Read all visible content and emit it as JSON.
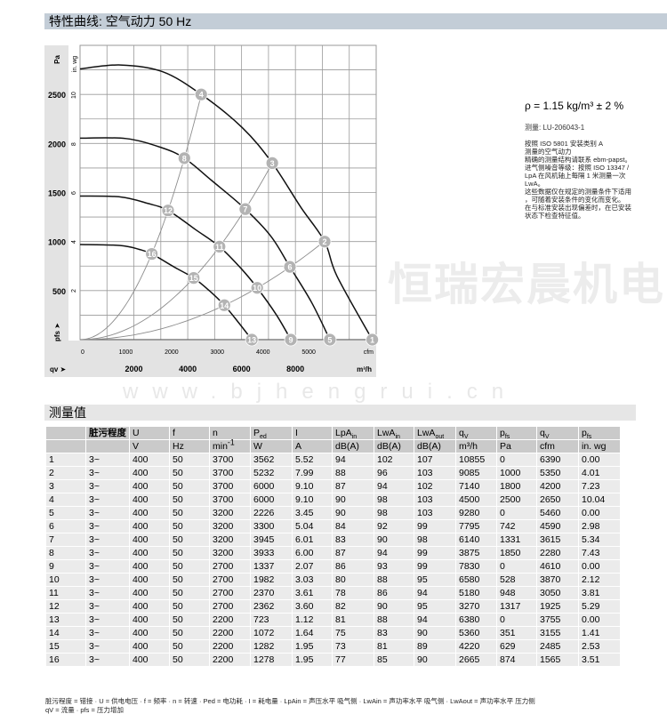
{
  "header": {
    "title": "特性曲线: 空气动力 50 Hz"
  },
  "watermark": {
    "brand": "恒瑞宏晨机电",
    "url": "www.bjhengrui.cn"
  },
  "info": {
    "density": "ρ = 1.15 kg/m³ ± 2 %",
    "measurement_id": "测量: LU-206043-1",
    "note": "按照 ISO 5801 安装类别 A\n测量的空气动力\n精确的测量结构请联系 ebm-papst。\n进气侧噪音等级：按照 ISO 13347 /\nLpA 在风机轴上每隔 1 米测量一次\nLwA。\n这些数据仅在规定的测量条件下适用\n，可随着安装条件的变化而变化。\n在与标准安装出现偏差时，在已安装\n状态下检查特征值。"
  },
  "chart_data": {
    "type": "line",
    "xlabel": "qv ➤",
    "xunit": "m³/h",
    "ylabel": "pfs ➤",
    "yunit": "Pa",
    "y2unit": "in. wg",
    "x2unit": "cfm",
    "xlim": [
      0,
      11000
    ],
    "ylim": [
      0,
      3000
    ],
    "grid": true,
    "x_ticks": [
      2000,
      4000,
      6000,
      8000
    ],
    "y_ticks": [
      500,
      1000,
      1500,
      2000,
      2500
    ],
    "y2_ticks": [
      2,
      4,
      6,
      8,
      10
    ],
    "x2_ticks": [
      0,
      1000,
      2000,
      3000,
      4000,
      5000
    ],
    "fan_curves": [
      [
        [
          0,
          2760
        ],
        [
          1500,
          2800
        ],
        [
          3060,
          2732
        ],
        [
          4500,
          2500
        ],
        [
          6030,
          2160
        ],
        [
          7140,
          1800
        ],
        [
          8200,
          1350
        ],
        [
          9085,
          1000
        ],
        [
          9540,
          650
        ],
        [
          10855,
          0
        ]
      ],
      [
        [
          0,
          2054
        ],
        [
          1700,
          2050
        ],
        [
          3000,
          1960
        ],
        [
          3875,
          1850
        ],
        [
          4900,
          1620
        ],
        [
          6140,
          1331
        ],
        [
          7100,
          1050
        ],
        [
          7795,
          742
        ],
        [
          8600,
          380
        ],
        [
          9280,
          0
        ]
      ],
      [
        [
          0,
          1464
        ],
        [
          1500,
          1455
        ],
        [
          2500,
          1390
        ],
        [
          3270,
          1317
        ],
        [
          4300,
          1120
        ],
        [
          5180,
          948
        ],
        [
          6000,
          720
        ],
        [
          6580,
          528
        ],
        [
          7300,
          250
        ],
        [
          7830,
          0
        ]
      ],
      [
        [
          0,
          970
        ],
        [
          1500,
          960
        ],
        [
          2200,
          920
        ],
        [
          2665,
          874
        ],
        [
          3500,
          740
        ],
        [
          4220,
          629
        ],
        [
          4800,
          500
        ],
        [
          5360,
          351
        ],
        [
          5900,
          170
        ],
        [
          6380,
          0
        ]
      ]
    ],
    "system_curves": [
      [
        16,
        12,
        8,
        4
      ],
      [
        15,
        11,
        7,
        3
      ],
      [
        14,
        10,
        6,
        2
      ]
    ],
    "points": [
      {
        "id": "1",
        "qv": 10855,
        "pfs": 0
      },
      {
        "id": "2",
        "qv": 9085,
        "pfs": 1000
      },
      {
        "id": "3",
        "qv": 7140,
        "pfs": 1800
      },
      {
        "id": "4",
        "qv": 4500,
        "pfs": 2500
      },
      {
        "id": "5",
        "qv": 9280,
        "pfs": 0
      },
      {
        "id": "6",
        "qv": 7795,
        "pfs": 742
      },
      {
        "id": "7",
        "qv": 6140,
        "pfs": 1331
      },
      {
        "id": "8",
        "qv": 3875,
        "pfs": 1850
      },
      {
        "id": "9",
        "qv": 7830,
        "pfs": 0
      },
      {
        "id": "10",
        "qv": 6580,
        "pfs": 528
      },
      {
        "id": "11",
        "qv": 5180,
        "pfs": 948
      },
      {
        "id": "12",
        "qv": 3270,
        "pfs": 1317
      },
      {
        "id": "13",
        "qv": 6380,
        "pfs": 0
      },
      {
        "id": "14",
        "qv": 5360,
        "pfs": 351
      },
      {
        "id": "15",
        "qv": 4220,
        "pfs": 629
      },
      {
        "id": "16",
        "qv": 2665,
        "pfs": 874
      }
    ],
    "colors": {
      "fan_curve": "#111111",
      "system_curve": "#8c8c8c",
      "marker": "#b3b3b3",
      "grid": "#9a9a9a",
      "band": "#e3e3e3"
    }
  },
  "table": {
    "section_title": "测量值",
    "header1": [
      "",
      "脏污程度",
      "U",
      "f",
      "n",
      "P",
      "I",
      "LpA",
      "LwA",
      "LwA",
      "q",
      "p",
      "q",
      "p"
    ],
    "header1_sub": [
      "",
      "",
      "",
      "",
      "",
      "ed",
      "",
      "in",
      "in",
      "out",
      "V",
      "fs",
      "V",
      "fs"
    ],
    "header2": [
      "",
      "",
      "V",
      "Hz",
      "min",
      "W",
      "A",
      "dB(A)",
      "dB(A)",
      "dB(A)",
      "m³/h",
      "Pa",
      "cfm",
      "in. wg"
    ],
    "header2_sup": [
      "",
      "",
      "",
      "",
      "-1",
      "",
      "",
      "",
      "",
      "",
      "",
      "",
      "",
      ""
    ],
    "rows": [
      [
        "1",
        "3~",
        "400",
        "50",
        "3700",
        "3562",
        "5.52",
        "94",
        "102",
        "107",
        "10855",
        "0",
        "6390",
        "0.00"
      ],
      [
        "2",
        "3~",
        "400",
        "50",
        "3700",
        "5232",
        "7.99",
        "88",
        "96",
        "103",
        "9085",
        "1000",
        "5350",
        "4.01"
      ],
      [
        "3",
        "3~",
        "400",
        "50",
        "3700",
        "6000",
        "9.10",
        "87",
        "94",
        "102",
        "7140",
        "1800",
        "4200",
        "7.23"
      ],
      [
        "4",
        "3~",
        "400",
        "50",
        "3700",
        "6000",
        "9.10",
        "90",
        "98",
        "103",
        "4500",
        "2500",
        "2650",
        "10.04"
      ],
      [
        "5",
        "3~",
        "400",
        "50",
        "3200",
        "2226",
        "3.45",
        "90",
        "98",
        "103",
        "9280",
        "0",
        "5460",
        "0.00"
      ],
      [
        "6",
        "3~",
        "400",
        "50",
        "3200",
        "3300",
        "5.04",
        "84",
        "92",
        "99",
        "7795",
        "742",
        "4590",
        "2.98"
      ],
      [
        "7",
        "3~",
        "400",
        "50",
        "3200",
        "3945",
        "6.01",
        "83",
        "90",
        "98",
        "6140",
        "1331",
        "3615",
        "5.34"
      ],
      [
        "8",
        "3~",
        "400",
        "50",
        "3200",
        "3933",
        "6.00",
        "87",
        "94",
        "99",
        "3875",
        "1850",
        "2280",
        "7.43"
      ],
      [
        "9",
        "3~",
        "400",
        "50",
        "2700",
        "1337",
        "2.07",
        "86",
        "93",
        "99",
        "7830",
        "0",
        "4610",
        "0.00"
      ],
      [
        "10",
        "3~",
        "400",
        "50",
        "2700",
        "1982",
        "3.03",
        "80",
        "88",
        "95",
        "6580",
        "528",
        "3870",
        "2.12"
      ],
      [
        "11",
        "3~",
        "400",
        "50",
        "2700",
        "2370",
        "3.61",
        "78",
        "86",
        "94",
        "5180",
        "948",
        "3050",
        "3.81"
      ],
      [
        "12",
        "3~",
        "400",
        "50",
        "2700",
        "2362",
        "3.60",
        "82",
        "90",
        "95",
        "3270",
        "1317",
        "1925",
        "5.29"
      ],
      [
        "13",
        "3~",
        "400",
        "50",
        "2200",
        "723",
        "1.12",
        "81",
        "88",
        "94",
        "6380",
        "0",
        "3755",
        "0.00"
      ],
      [
        "14",
        "3~",
        "400",
        "50",
        "2200",
        "1072",
        "1.64",
        "75",
        "83",
        "90",
        "5360",
        "351",
        "3155",
        "1.41"
      ],
      [
        "15",
        "3~",
        "400",
        "50",
        "2200",
        "1282",
        "1.95",
        "73",
        "81",
        "89",
        "4220",
        "629",
        "2485",
        "2.53"
      ],
      [
        "16",
        "3~",
        "400",
        "50",
        "2200",
        "1278",
        "1.95",
        "77",
        "85",
        "90",
        "2665",
        "874",
        "1565",
        "3.51"
      ]
    ]
  },
  "legend": {
    "line1": "脏污程度 = 错接 · U = 供电电压 · f = 频率 · n = 转速 · Ped = 电功耗 · I = 耗电量 · LpAin = 声压水平 吸气侧 · LwAin = 声功率水平 吸气侧 · LwAout = 声功率水平 压力侧",
    "line2": "qV = 流量 · pfs = 压力增加"
  }
}
